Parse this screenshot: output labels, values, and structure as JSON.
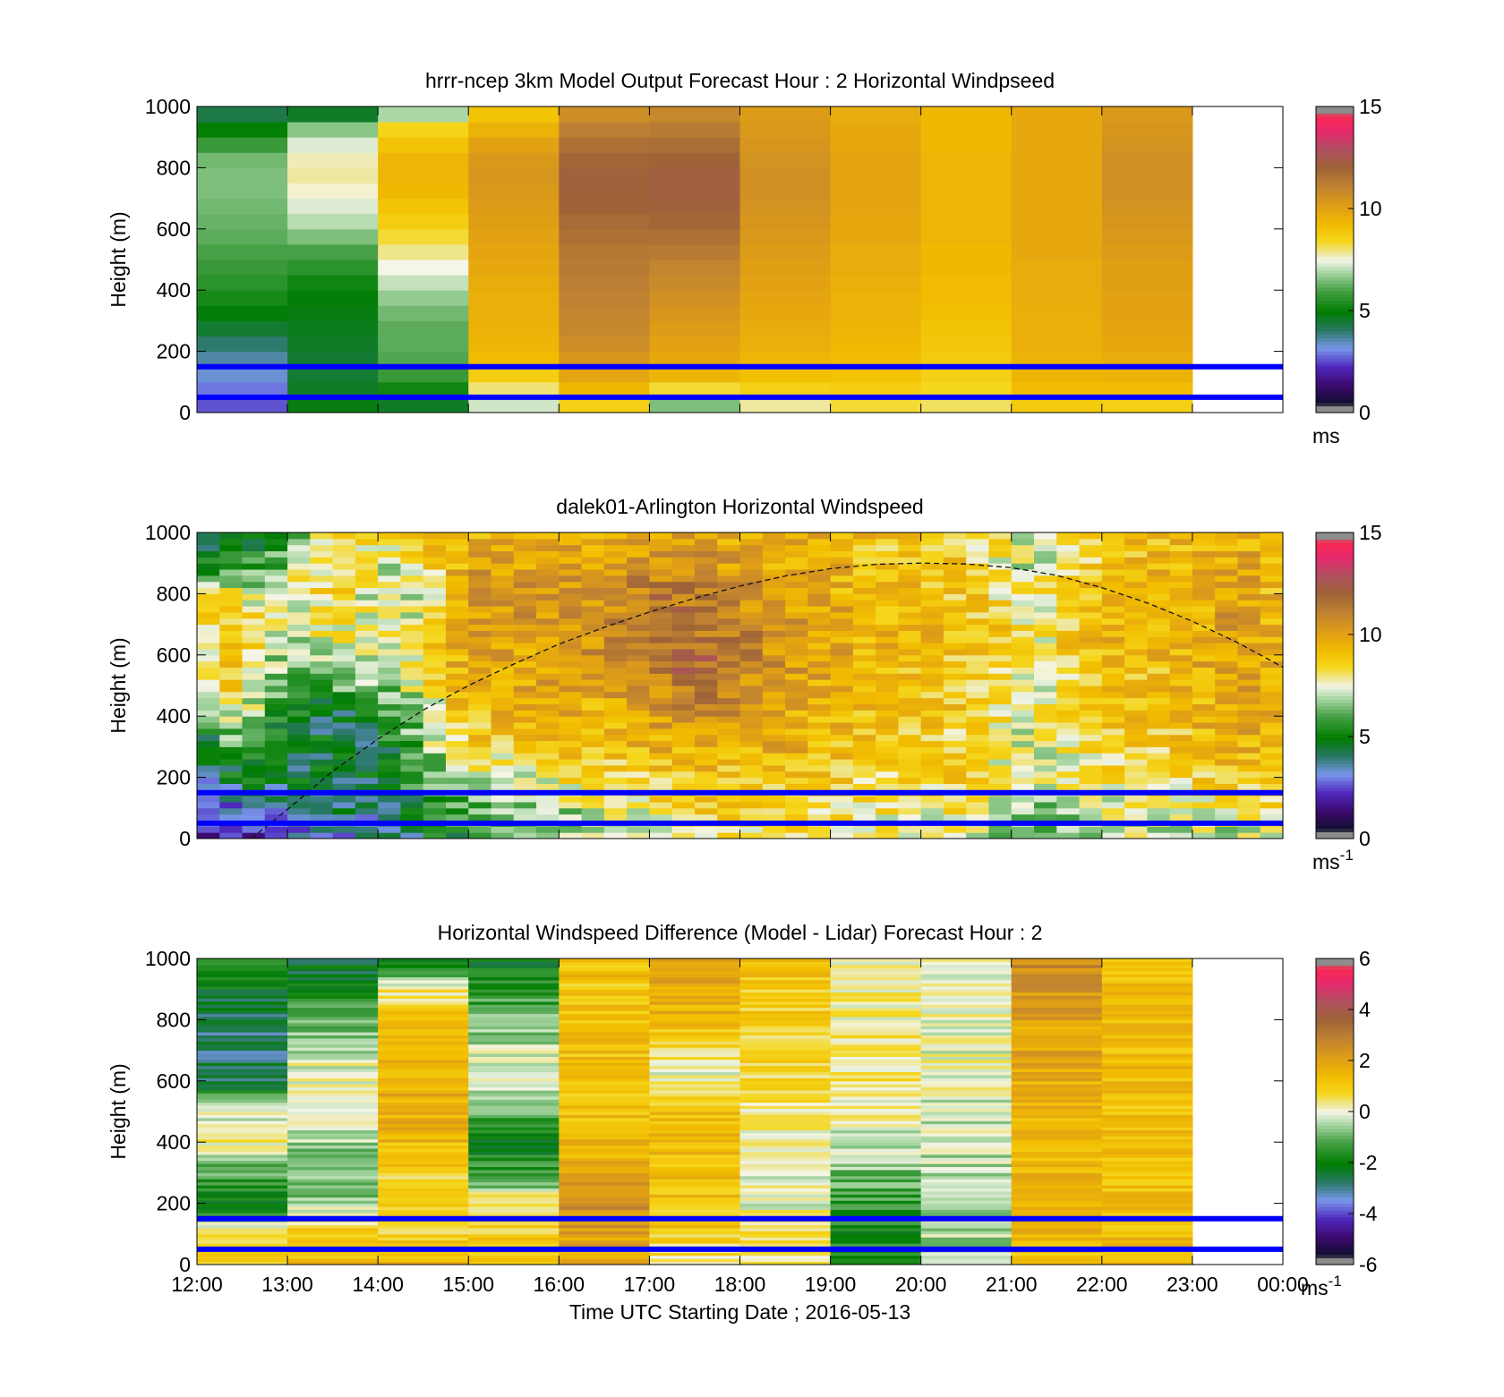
{
  "chart_data": [
    {
      "type": "heatmap",
      "title": "hrrr-ncep 3km Model Output   Forecast Hour : 2 Horizontal Windpseed",
      "ylabel": "Height (m)",
      "xlabel": "",
      "xlim": [
        12,
        24
      ],
      "ylim": [
        0,
        1000
      ],
      "yticks": [
        "0",
        "200",
        "400",
        "600",
        "800",
        "1000"
      ],
      "xtick_hours": [
        12,
        13,
        14,
        15,
        16,
        17,
        18,
        19,
        20,
        21,
        22,
        23,
        24
      ],
      "xticklabels": [],
      "grid": false,
      "colorbar": {
        "vmin": 0,
        "vmax": 15,
        "ticks": [
          "0",
          "5",
          "10",
          "15"
        ],
        "unit": "ms",
        "unit_exp": ""
      },
      "hour_starts": [
        12,
        13,
        14,
        15,
        16,
        17,
        18,
        19,
        20,
        21,
        22
      ],
      "heights": [
        25,
        75,
        125,
        175,
        225,
        275,
        325,
        375,
        425,
        475,
        525,
        575,
        625,
        675,
        725,
        775,
        825,
        875,
        925,
        975
      ],
      "values": [
        [
          2.6,
          2.9,
          3.3,
          3.6,
          4.0,
          4.5,
          4.9,
          5.3,
          5.6,
          5.8,
          6.0,
          6.2,
          6.3,
          6.4,
          6.5,
          6.5,
          6.4,
          5.8,
          5.0,
          4.3
        ],
        [
          4.8,
          4.6,
          4.5,
          4.5,
          4.6,
          4.7,
          4.8,
          4.9,
          5.2,
          5.6,
          6.0,
          6.5,
          7.0,
          7.3,
          7.6,
          7.8,
          7.7,
          7.3,
          6.6,
          4.6
        ],
        [
          4.6,
          5.2,
          5.8,
          6.1,
          6.2,
          6.2,
          6.4,
          6.7,
          7.1,
          7.5,
          7.9,
          8.3,
          8.7,
          9.0,
          9.3,
          9.4,
          9.4,
          9.0,
          8.5,
          6.9
        ],
        [
          7.2,
          8.0,
          8.7,
          9.2,
          9.4,
          9.5,
          9.6,
          9.6,
          9.7,
          9.8,
          9.9,
          10.0,
          10.1,
          10.2,
          10.3,
          10.4,
          10.3,
          10.0,
          9.5,
          9.0
        ],
        [
          8.6,
          9.3,
          9.9,
          10.4,
          10.7,
          10.9,
          11.0,
          11.1,
          11.2,
          11.3,
          11.4,
          11.6,
          11.8,
          12.0,
          12.1,
          12.1,
          11.9,
          11.6,
          11.2,
          10.7
        ],
        [
          6.5,
          8.3,
          9.4,
          9.8,
          10.0,
          10.2,
          10.4,
          10.6,
          10.8,
          11.0,
          11.3,
          11.6,
          11.9,
          12.1,
          12.2,
          12.2,
          12.0,
          11.7,
          11.3,
          10.9
        ],
        [
          7.8,
          8.6,
          9.1,
          9.4,
          9.6,
          9.7,
          9.8,
          9.9,
          10.0,
          10.1,
          10.2,
          10.3,
          10.4,
          10.5,
          10.6,
          10.6,
          10.5,
          10.4,
          10.3,
          10.2
        ],
        [
          8.3,
          8.7,
          9.0,
          9.2,
          9.3,
          9.4,
          9.5,
          9.5,
          9.6,
          9.7,
          9.7,
          9.8,
          9.8,
          9.9,
          9.9,
          9.9,
          9.9,
          9.8,
          9.8,
          9.7
        ],
        [
          8.1,
          8.4,
          8.6,
          8.8,
          8.9,
          9.0,
          9.1,
          9.2,
          9.2,
          9.3,
          9.3,
          9.4,
          9.4,
          9.4,
          9.4,
          9.4,
          9.4,
          9.3,
          9.3,
          9.3
        ],
        [
          8.8,
          9.2,
          9.4,
          9.5,
          9.6,
          9.6,
          9.6,
          9.7,
          9.7,
          9.7,
          9.8,
          9.8,
          9.8,
          9.8,
          9.8,
          9.8,
          9.8,
          9.8,
          9.8,
          9.8
        ],
        [
          8.6,
          9.2,
          9.5,
          9.7,
          9.8,
          9.9,
          10.0,
          10.0,
          10.1,
          10.1,
          10.2,
          10.3,
          10.4,
          10.5,
          10.6,
          10.6,
          10.6,
          10.5,
          10.4,
          10.3
        ]
      ],
      "hlines": [
        50,
        150
      ]
    },
    {
      "type": "heatmap",
      "title": "dalek01-Arlington  Horizontal Windspeed",
      "ylabel": "Height (m)",
      "xlabel": "",
      "xlim": [
        12,
        24
      ],
      "ylim": [
        0,
        1000
      ],
      "yticks": [
        "0",
        "200",
        "400",
        "600",
        "800",
        "1000"
      ],
      "xtick_hours": [
        12,
        13,
        14,
        15,
        16,
        17,
        18,
        19,
        20,
        21,
        22,
        23,
        24
      ],
      "xticklabels": [],
      "grid": false,
      "colorbar": {
        "vmin": 0,
        "vmax": 15,
        "ticks": [
          "0",
          "5",
          "10",
          "15"
        ],
        "unit": "ms",
        "unit_exp": "-1"
      },
      "time_range": [
        12,
        23.9
      ],
      "cell_hours": 0.25,
      "cell_height": 20,
      "anchor_times": [
        12.0,
        12.25,
        12.5,
        12.75,
        13.0,
        13.25,
        13.5,
        13.75,
        14.0,
        14.25,
        14.5,
        14.75,
        15.0,
        15.5,
        16.0,
        16.5,
        17.0,
        17.5,
        18.0,
        18.5,
        19.0,
        19.5,
        20.0,
        20.5,
        21.0,
        21.25,
        21.5,
        22.0,
        22.5,
        23.0,
        23.5,
        23.9
      ],
      "anchor_heights": [
        0,
        100,
        200,
        300,
        400,
        500,
        600,
        700,
        800,
        900,
        1000
      ],
      "anchor_values": [
        [
          2.0,
          2.5,
          3.5,
          4.0,
          5.0,
          6.0,
          7.5,
          8.0,
          8.0,
          4.5,
          3.5
        ],
        [
          2.0,
          3.0,
          4.0,
          5.0,
          7.0,
          8.5,
          9.0,
          8.5,
          8.0,
          5.0,
          3.5
        ],
        [
          2.0,
          3.0,
          5.0,
          6.5,
          7.5,
          9.0,
          9.5,
          9.0,
          8.0,
          6.0,
          4.0
        ],
        [
          2.5,
          3.5,
          4.5,
          5.0,
          6.0,
          6.5,
          7.0,
          7.5,
          6.5,
          5.5,
          4.5
        ],
        [
          2.5,
          3.5,
          4.5,
          4.5,
          5.0,
          6.0,
          7.0,
          7.5,
          7.5,
          7.0,
          5.0
        ],
        [
          2.5,
          4.0,
          4.5,
          4.5,
          4.5,
          5.5,
          7.0,
          7.5,
          8.0,
          8.0,
          7.5
        ],
        [
          3.0,
          4.0,
          4.5,
          4.5,
          4.5,
          6.0,
          7.5,
          8.0,
          8.5,
          8.5,
          8.0
        ],
        [
          3.0,
          4.0,
          4.5,
          4.5,
          4.5,
          6.5,
          7.5,
          8.0,
          8.0,
          8.5,
          8.0
        ],
        [
          3.5,
          4.0,
          4.5,
          4.5,
          5.0,
          6.5,
          7.5,
          7.5,
          7.0,
          7.5,
          8.0
        ],
        [
          4.0,
          4.5,
          5.0,
          5.5,
          6.0,
          7.0,
          7.5,
          7.5,
          7.0,
          7.5,
          8.5
        ],
        [
          4.5,
          5.0,
          6.0,
          6.5,
          7.0,
          8.0,
          8.5,
          8.0,
          7.5,
          8.0,
          9.0
        ],
        [
          5.0,
          5.5,
          7.0,
          7.5,
          8.0,
          9.0,
          9.0,
          9.0,
          9.0,
          9.0,
          9.5
        ],
        [
          5.5,
          6.0,
          7.0,
          8.5,
          9.0,
          9.5,
          10.0,
          10.0,
          10.5,
          10.0,
          9.5
        ],
        [
          6.5,
          7.0,
          7.5,
          8.5,
          9.5,
          9.8,
          10.0,
          10.2,
          10.5,
          10.0,
          9.5
        ],
        [
          6.5,
          7.0,
          8.0,
          9.0,
          9.5,
          9.8,
          10.0,
          10.5,
          10.5,
          10.0,
          9.5
        ],
        [
          7.0,
          7.5,
          8.5,
          9.0,
          9.5,
          10.0,
          10.5,
          10.5,
          10.5,
          10.0,
          9.5
        ],
        [
          7.5,
          8.0,
          8.5,
          9.5,
          10.0,
          10.5,
          11.5,
          12.0,
          11.5,
          10.5,
          9.8
        ],
        [
          7.5,
          8.5,
          9.0,
          9.5,
          10.5,
          11.5,
          12.0,
          11.5,
          11.0,
          10.5,
          10.0
        ],
        [
          8.0,
          8.5,
          9.0,
          9.5,
          10.2,
          10.5,
          11.0,
          11.0,
          10.5,
          10.0,
          9.8
        ],
        [
          8.0,
          8.5,
          9.0,
          9.5,
          9.8,
          10.0,
          10.3,
          10.3,
          10.0,
          9.7,
          9.5
        ],
        [
          8.0,
          8.5,
          8.8,
          9.2,
          9.5,
          9.7,
          9.8,
          9.8,
          9.7,
          9.5,
          9.3
        ],
        [
          7.5,
          8.0,
          8.5,
          9.0,
          9.2,
          9.3,
          9.4,
          9.5,
          9.3,
          9.0,
          9.0
        ],
        [
          7.5,
          8.0,
          8.5,
          8.8,
          9.0,
          9.0,
          9.1,
          9.2,
          9.0,
          8.8,
          8.8
        ],
        [
          7.5,
          8.0,
          8.5,
          8.5,
          8.7,
          8.8,
          9.0,
          9.0,
          8.8,
          8.6,
          8.6
        ],
        [
          6.5,
          7.0,
          7.5,
          7.8,
          8.0,
          8.2,
          8.4,
          8.5,
          8.0,
          7.6,
          7.8
        ],
        [
          6.0,
          6.5,
          7.0,
          7.0,
          7.2,
          7.4,
          7.5,
          7.6,
          7.4,
          7.0,
          7.2
        ],
        [
          6.5,
          7.0,
          7.5,
          7.8,
          8.0,
          8.2,
          8.3,
          8.5,
          8.4,
          8.0,
          8.0
        ],
        [
          7.0,
          7.5,
          8.0,
          8.5,
          8.8,
          9.0,
          9.2,
          9.3,
          9.2,
          9.0,
          8.8
        ],
        [
          7.0,
          7.5,
          8.2,
          8.5,
          8.8,
          9.0,
          9.2,
          9.4,
          9.4,
          9.2,
          9.0
        ],
        [
          7.0,
          7.5,
          8.5,
          9.0,
          9.2,
          9.4,
          9.5,
          9.5,
          9.5,
          9.4,
          9.3
        ],
        [
          7.0,
          8.0,
          9.0,
          9.6,
          10.0,
          10.2,
          10.3,
          10.2,
          10.2,
          10.0,
          9.8
        ],
        [
          7.5,
          8.5,
          9.0,
          9.3,
          9.5,
          9.5,
          9.5,
          9.5,
          9.3,
          9.2,
          9.0
        ]
      ],
      "boundary_layer_curve": {
        "t": [
          12.6,
          13.0,
          13.5,
          14.0,
          14.5,
          15.0,
          15.5,
          16.0,
          16.5,
          17.0,
          17.5,
          18.0,
          18.5,
          19.0,
          19.5,
          20.0,
          20.5,
          21.0,
          21.5,
          22.0,
          22.5,
          23.0,
          23.5,
          24.0
        ],
        "h": [
          0,
          95,
          220,
          325,
          420,
          500,
          570,
          635,
          690,
          740,
          785,
          825,
          858,
          882,
          896,
          900,
          897,
          885,
          860,
          820,
          770,
          710,
          640,
          560
        ]
      },
      "hlines": [
        50,
        150
      ]
    },
    {
      "type": "heatmap",
      "title": "Horizontal Windspeed Difference (Model - Lidar) Forecast Hour : 2",
      "ylabel": "Height (m)",
      "xlabel": "Time UTC  Starting Date ; 2016-05-13",
      "xlim": [
        12,
        24
      ],
      "ylim": [
        0,
        1000
      ],
      "yticks": [
        "0",
        "200",
        "400",
        "600",
        "800",
        "1000"
      ],
      "xtick_hours": [
        12,
        13,
        14,
        15,
        16,
        17,
        18,
        19,
        20,
        21,
        22,
        23,
        24
      ],
      "xticklabels": [
        "12:00",
        "13:00",
        "14:00",
        "15:00",
        "16:00",
        "17:00",
        "18:00",
        "19:00",
        "20:00",
        "21:00",
        "22:00",
        "23:00",
        "00:00"
      ],
      "grid": false,
      "colorbar": {
        "vmin": -6,
        "vmax": 6,
        "ticks": [
          "-6",
          "-4",
          "-2",
          "0",
          "2",
          "4",
          "6"
        ],
        "unit": "ms",
        "unit_exp": "-1"
      },
      "hour_starts": [
        12,
        13,
        14,
        15,
        16,
        17,
        18,
        19,
        20,
        21,
        22
      ],
      "cell_height": 10,
      "anchor_heights": [
        0,
        100,
        200,
        300,
        400,
        500,
        600,
        700,
        800,
        900,
        1000
      ],
      "anchor_values": [
        [
          1.0,
          0.5,
          -2.2,
          -1.2,
          0.2,
          -0.2,
          -2.5,
          -2.8,
          -2.8,
          -2.3,
          -1.6
        ],
        [
          1.2,
          1.0,
          -0.6,
          -0.8,
          -0.5,
          0.2,
          0.2,
          -0.3,
          -1.0,
          -2.0,
          -2.5
        ],
        [
          1.5,
          0.8,
          0.8,
          0.9,
          1.4,
          1.8,
          1.6,
          1.3,
          1.0,
          0.4,
          -2.6
        ],
        [
          1.0,
          1.0,
          0.6,
          -1.5,
          -2.0,
          -1.0,
          -0.2,
          -0.3,
          -0.9,
          -1.6,
          -2.1
        ],
        [
          1.6,
          2.2,
          2.4,
          1.8,
          1.4,
          1.2,
          1.2,
          1.2,
          1.2,
          1.2,
          1.2
        ],
        [
          0.2,
          1.0,
          1.2,
          1.2,
          1.4,
          1.3,
          0.0,
          0.5,
          1.5,
          1.8,
          2.2
        ],
        [
          0.5,
          0.5,
          0.0,
          0.0,
          0.2,
          0.3,
          0.5,
          0.8,
          0.9,
          1.1,
          1.5
        ],
        [
          -1.6,
          -1.7,
          -1.5,
          -0.8,
          -0.2,
          0.2,
          0.3,
          0.4,
          0.3,
          0.2,
          0.0
        ],
        [
          -0.5,
          -0.4,
          -0.5,
          -0.4,
          -0.3,
          -0.2,
          0.0,
          0.0,
          0.1,
          0.1,
          0.0
        ],
        [
          1.2,
          1.5,
          1.4,
          1.5,
          1.6,
          1.6,
          1.7,
          1.9,
          2.0,
          2.3,
          2.6
        ],
        [
          1.3,
          1.4,
          1.2,
          1.2,
          1.2,
          1.2,
          1.3,
          1.3,
          1.4,
          1.4,
          1.4
        ]
      ],
      "hlines": [
        50,
        150
      ]
    }
  ]
}
